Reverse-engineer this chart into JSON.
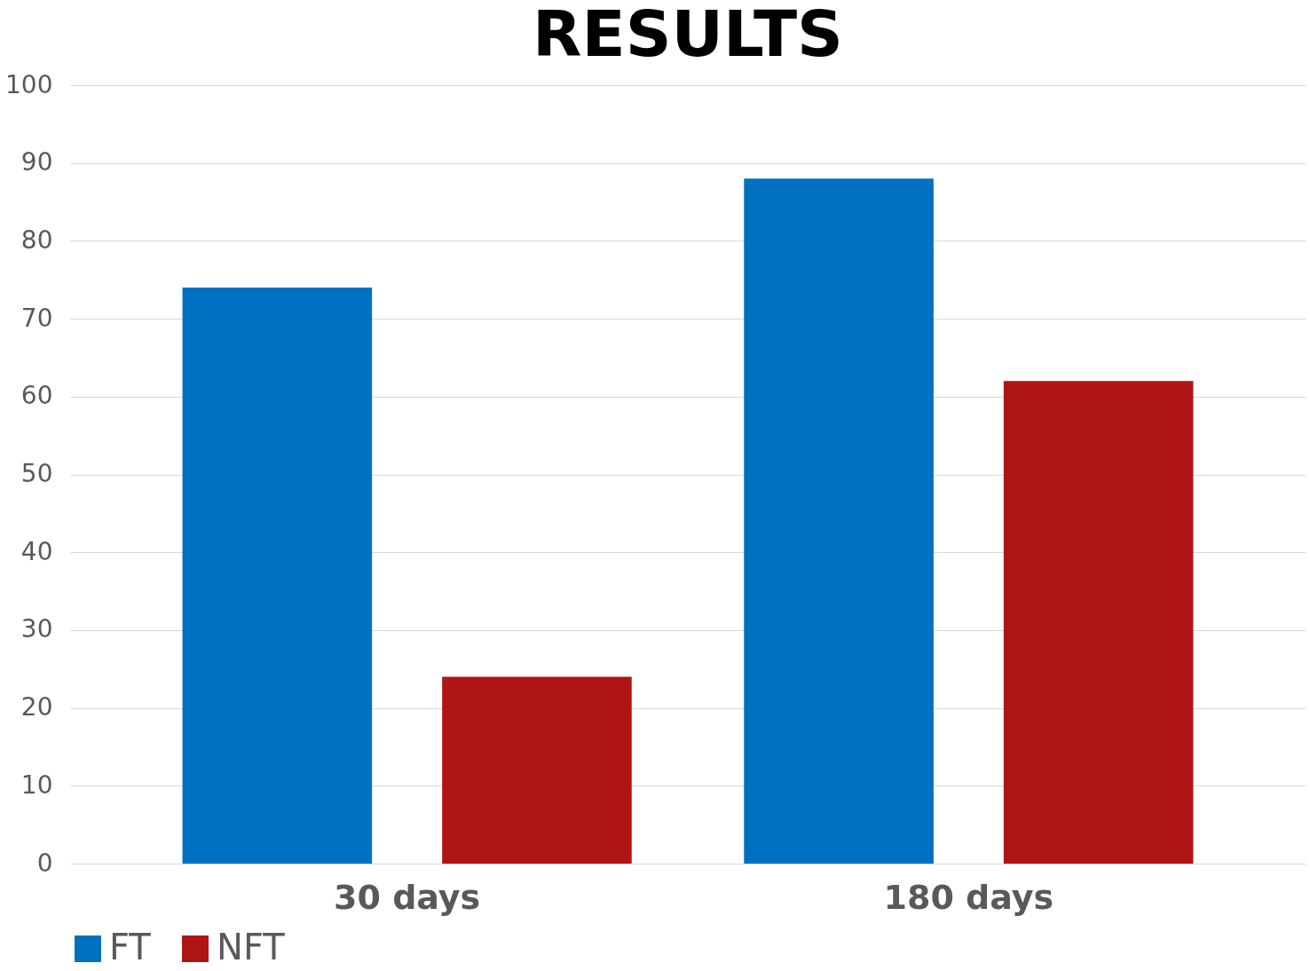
{
  "chart_data": {
    "type": "bar",
    "title": "RESULTS",
    "categories": [
      "30 days",
      "180 days"
    ],
    "series": [
      {
        "name": "FT",
        "color": "#0070c0",
        "values": [
          74,
          88
        ]
      },
      {
        "name": "NFT",
        "color": "#b01515",
        "values": [
          24,
          62
        ]
      }
    ],
    "ylim": [
      0,
      100
    ],
    "yticks": [
      0,
      10,
      20,
      30,
      40,
      50,
      60,
      70,
      80,
      90,
      100
    ],
    "grid": "y",
    "legend": "bottom"
  }
}
